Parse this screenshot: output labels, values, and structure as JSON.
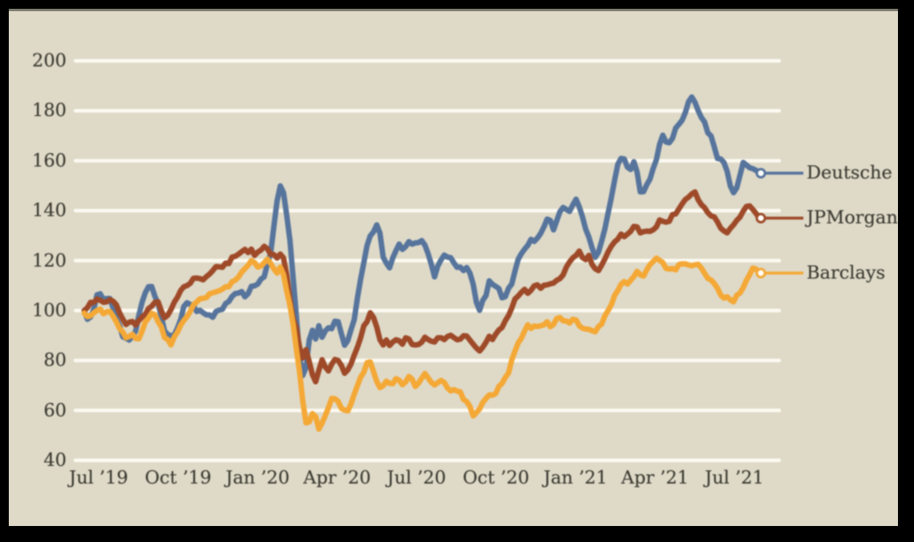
{
  "window": {
    "background_color": "#000000",
    "panel_background_color": "#dfdac8",
    "panel_top_edge_color": "#6f6d60"
  },
  "chart_data": {
    "type": "line",
    "x_tick_labels": [
      "Jul ’19",
      "Oct ’19",
      "Jan ’20",
      "Apr ’20",
      "Jul ’20",
      "Oct ’20",
      "Jan ’21",
      "Apr ’21",
      "Jul ’21"
    ],
    "y_tick_labels": [
      "40",
      "60",
      "80",
      "100",
      "120",
      "140",
      "160",
      "180",
      "200"
    ],
    "y_ticks": [
      40,
      60,
      80,
      100,
      120,
      140,
      160,
      180,
      200
    ],
    "ylim": [
      40,
      200
    ],
    "grid": true,
    "gridline_color": "#fbf9f0",
    "axis_text_color": "#3b3a31",
    "legend_position": "right",
    "legend_text_color": "#3b3a31",
    "series": [
      {
        "name": "Deutsche",
        "color": "#56749c",
        "values": [
          100.0,
          96.5,
          97.4,
          100.6,
          106.3,
          106.7,
          104.4,
          104.8,
          104.8,
          101.0,
          96.8,
          94.0,
          89.5,
          88.9,
          88.2,
          89.6,
          91.8,
          98.1,
          103.3,
          107.1,
          109.5,
          109.6,
          105.7,
          102.8,
          97.6,
          91.8,
          90.4,
          89.9,
          90.2,
          93.0,
          96.3,
          101.7,
          103.1,
          102.4,
          101.9,
          99.6,
          100.1,
          99.1,
          98.3,
          98.2,
          97.3,
          99.6,
          100.2,
          100.5,
          102.8,
          103.6,
          105.6,
          106.8,
          107.0,
          107.6,
          105.5,
          106.8,
          109.7,
          109.9,
          110.6,
          112.6,
          113.5,
          118.7,
          123.0,
          133.7,
          143.9,
          149.9,
          147.2,
          138.2,
          128.2,
          113.2,
          97.9,
          81.7,
          74.0,
          77.3,
          88.2,
          92.1,
          88.6,
          93.9,
          89.3,
          91.8,
          93.1,
          92.7,
          95.7,
          95.5,
          90.7,
          86.1,
          88.0,
          92.3,
          96.3,
          105.0,
          112.6,
          119.2,
          126.0,
          129.9,
          131.5,
          134.3,
          131.0,
          121.4,
          119.0,
          117.1,
          121.1,
          124.0,
          126.6,
          124.5,
          125.6,
          127.6,
          126.6,
          127.1,
          127.2,
          128.0,
          126.2,
          122.7,
          118.5,
          113.5,
          117.8,
          120.3,
          122.2,
          121.4,
          121.2,
          119.1,
          117.3,
          117.4,
          116.0,
          117.2,
          115.0,
          110.5,
          103.3,
          100.1,
          104.1,
          106.0,
          111.9,
          110.5,
          109.7,
          108.8,
          105.1,
          105.5,
          108.9,
          110.6,
          115.8,
          120.5,
          122.8,
          124.6,
          126.1,
          128.5,
          127.7,
          129.0,
          130.9,
          133.5,
          136.6,
          136.1,
          132.3,
          136.0,
          139.6,
          141.3,
          140.5,
          139.7,
          142.3,
          144.6,
          141.5,
          137.5,
          132.6,
          129.4,
          125.1,
          121.3,
          123.4,
          127.9,
          132.8,
          139.2,
          145.4,
          152.2,
          158.6,
          160.9,
          160.7,
          157.4,
          156.5,
          159.6,
          155.5,
          147.5,
          147.6,
          150.4,
          152.6,
          156.9,
          160.4,
          166.6,
          170.2,
          167.5,
          167.2,
          168.9,
          173.1,
          174.6,
          176.2,
          179.3,
          183.6,
          185.5,
          183.4,
          180.1,
          177.3,
          175.5,
          171.2,
          169.9,
          165.5,
          160.9,
          160.7,
          159.3,
          155.8,
          149.9,
          147.2,
          149.1,
          154.1,
          159.3,
          158.3,
          157.2,
          156.8,
          156.1,
          155.0
        ]
      },
      {
        "name": "JPMorgan",
        "color": "#9e4a29",
        "values": [
          100.0,
          101.1,
          103.3,
          103.2,
          104.6,
          104.1,
          103.3,
          103.5,
          104.4,
          103.7,
          102.3,
          99.1,
          96.6,
          94.4,
          95.3,
          95.6,
          94.2,
          96.0,
          97.4,
          98.5,
          100.8,
          101.7,
          103.3,
          103.5,
          99.9,
          97.1,
          98.1,
          100.4,
          103.3,
          105.3,
          108.0,
          109.5,
          110.0,
          110.9,
          112.9,
          113.0,
          112.8,
          112.3,
          113.6,
          114.6,
          116.0,
          117.6,
          117.5,
          117.3,
          119.0,
          118.8,
          121.4,
          121.7,
          122.6,
          123.6,
          124.5,
          123.2,
          124.6,
          122.1,
          123.4,
          124.2,
          125.7,
          124.7,
          122.6,
          122.4,
          121.0,
          122.6,
          121.1,
          114.3,
          104.3,
          96.7,
          92.9,
          85.3,
          81.0,
          84.3,
          79.5,
          74.3,
          71.5,
          76.0,
          80.3,
          77.4,
          75.8,
          78.5,
          80.4,
          80.0,
          78.0,
          74.9,
          76.2,
          78.6,
          82.1,
          85.3,
          89.1,
          93.9,
          95.5,
          99.1,
          97.2,
          93.4,
          88.3,
          86.2,
          88.2,
          86.0,
          87.4,
          88.3,
          87.9,
          86.5,
          89.1,
          88.6,
          86.4,
          86.2,
          86.4,
          87.3,
          89.3,
          88.4,
          87.7,
          87.4,
          89.1,
          89.1,
          88.4,
          89.6,
          90.1,
          89.2,
          88.3,
          88.5,
          89.9,
          89.8,
          88.2,
          86.5,
          85.0,
          83.8,
          85.3,
          87.3,
          89.7,
          88.4,
          90.5,
          92.2,
          93.2,
          95.9,
          98.0,
          101.0,
          104.6,
          105.8,
          107.3,
          108.5,
          106.9,
          108.1,
          109.9,
          110.3,
          108.9,
          110.1,
          110.3,
          110.7,
          111.0,
          112.1,
          112.8,
          114.3,
          117.4,
          119.5,
          121.1,
          122.1,
          123.8,
          121.2,
          120.4,
          122.1,
          118.4,
          116.7,
          116.0,
          118.2,
          120.7,
          123.6,
          125.8,
          127.5,
          128.6,
          130.6,
          129.6,
          130.6,
          131.7,
          133.7,
          133.5,
          131.1,
          131.6,
          131.8,
          131.7,
          132.3,
          133.5,
          136.3,
          135.7,
          135.4,
          135.7,
          138.4,
          138.7,
          140.7,
          142.7,
          144.5,
          145.4,
          146.7,
          147.5,
          144.4,
          142.4,
          141.2,
          139.2,
          137.9,
          137.5,
          135.5,
          133.0,
          131.9,
          131.1,
          132.9,
          134.3,
          136.1,
          137.4,
          139.8,
          141.7,
          141.9,
          140.5,
          138.9,
          137.0
        ]
      },
      {
        "name": "Barclays",
        "color": "#f4a836",
        "values": [
          99.0,
          97.6,
          97.9,
          99.1,
          100.0,
          100.6,
          98.7,
          99.5,
          99.6,
          97.7,
          95.5,
          92.8,
          91.4,
          89.1,
          89.6,
          90.5,
          88.8,
          88.7,
          91.7,
          95.4,
          97.0,
          98.9,
          98.3,
          95.5,
          93.5,
          89.2,
          88.4,
          86.2,
          89.4,
          91.3,
          94.1,
          96.0,
          97.6,
          99.6,
          102.3,
          103.4,
          104.7,
          104.9,
          105.2,
          106.7,
          107.1,
          107.5,
          107.9,
          108.6,
          109.5,
          109.5,
          111.5,
          112.1,
          113.4,
          115.4,
          116.8,
          118.1,
          120.0,
          119.2,
          117.4,
          117.8,
          119.1,
          120.6,
          118.9,
          116.7,
          115.0,
          117.4,
          114.5,
          107.8,
          102.2,
          94.6,
          84.7,
          75.6,
          63.8,
          55.0,
          55.4,
          58.7,
          57.5,
          52.5,
          54.9,
          57.9,
          61.1,
          64.8,
          64.7,
          63.6,
          60.8,
          60.1,
          59.8,
          62.6,
          66.5,
          69.9,
          73.3,
          75.3,
          79.1,
          79.4,
          75.5,
          71.6,
          69.1,
          69.9,
          71.7,
          70.8,
          70.7,
          72.7,
          72.1,
          70.3,
          71.4,
          73.6,
          72.5,
          69.6,
          70.9,
          72.9,
          74.8,
          73.0,
          71.2,
          70.2,
          71.1,
          72.0,
          71.2,
          69.0,
          67.8,
          68.3,
          67.7,
          67.4,
          64.4,
          63.5,
          61.6,
          57.8,
          59.1,
          60.6,
          63.2,
          64.8,
          66.2,
          66.1,
          66.7,
          69.6,
          70.8,
          73.2,
          75.0,
          80.2,
          83.7,
          87.0,
          88.9,
          91.8,
          94.3,
          92.8,
          93.8,
          93.6,
          93.9,
          94.3,
          95.5,
          93.5,
          94.4,
          96.8,
          97.2,
          95.9,
          95.8,
          95.0,
          96.5,
          96.2,
          93.9,
          92.9,
          92.6,
          92.5,
          91.9,
          91.5,
          93.6,
          94.6,
          97.9,
          100.1,
          102.4,
          106.1,
          108.0,
          110.5,
          111.6,
          110.6,
          112.1,
          113.6,
          115.7,
          114.3,
          113.8,
          116.3,
          118.4,
          119.6,
          121.0,
          120.1,
          119.2,
          116.9,
          116.6,
          116.8,
          116.3,
          118.4,
          118.7,
          118.7,
          118.2,
          117.9,
          118.3,
          118.5,
          117.0,
          114.9,
          112.9,
          112.2,
          110.8,
          108.9,
          106.2,
          105.0,
          105.5,
          104.3,
          103.5,
          106.1,
          107.0,
          109.2,
          112.1,
          114.4,
          117.0,
          116.6,
          115.0
        ]
      }
    ],
    "end_markers": {
      "fill": "#fdfcf7",
      "shape": "circle"
    }
  }
}
